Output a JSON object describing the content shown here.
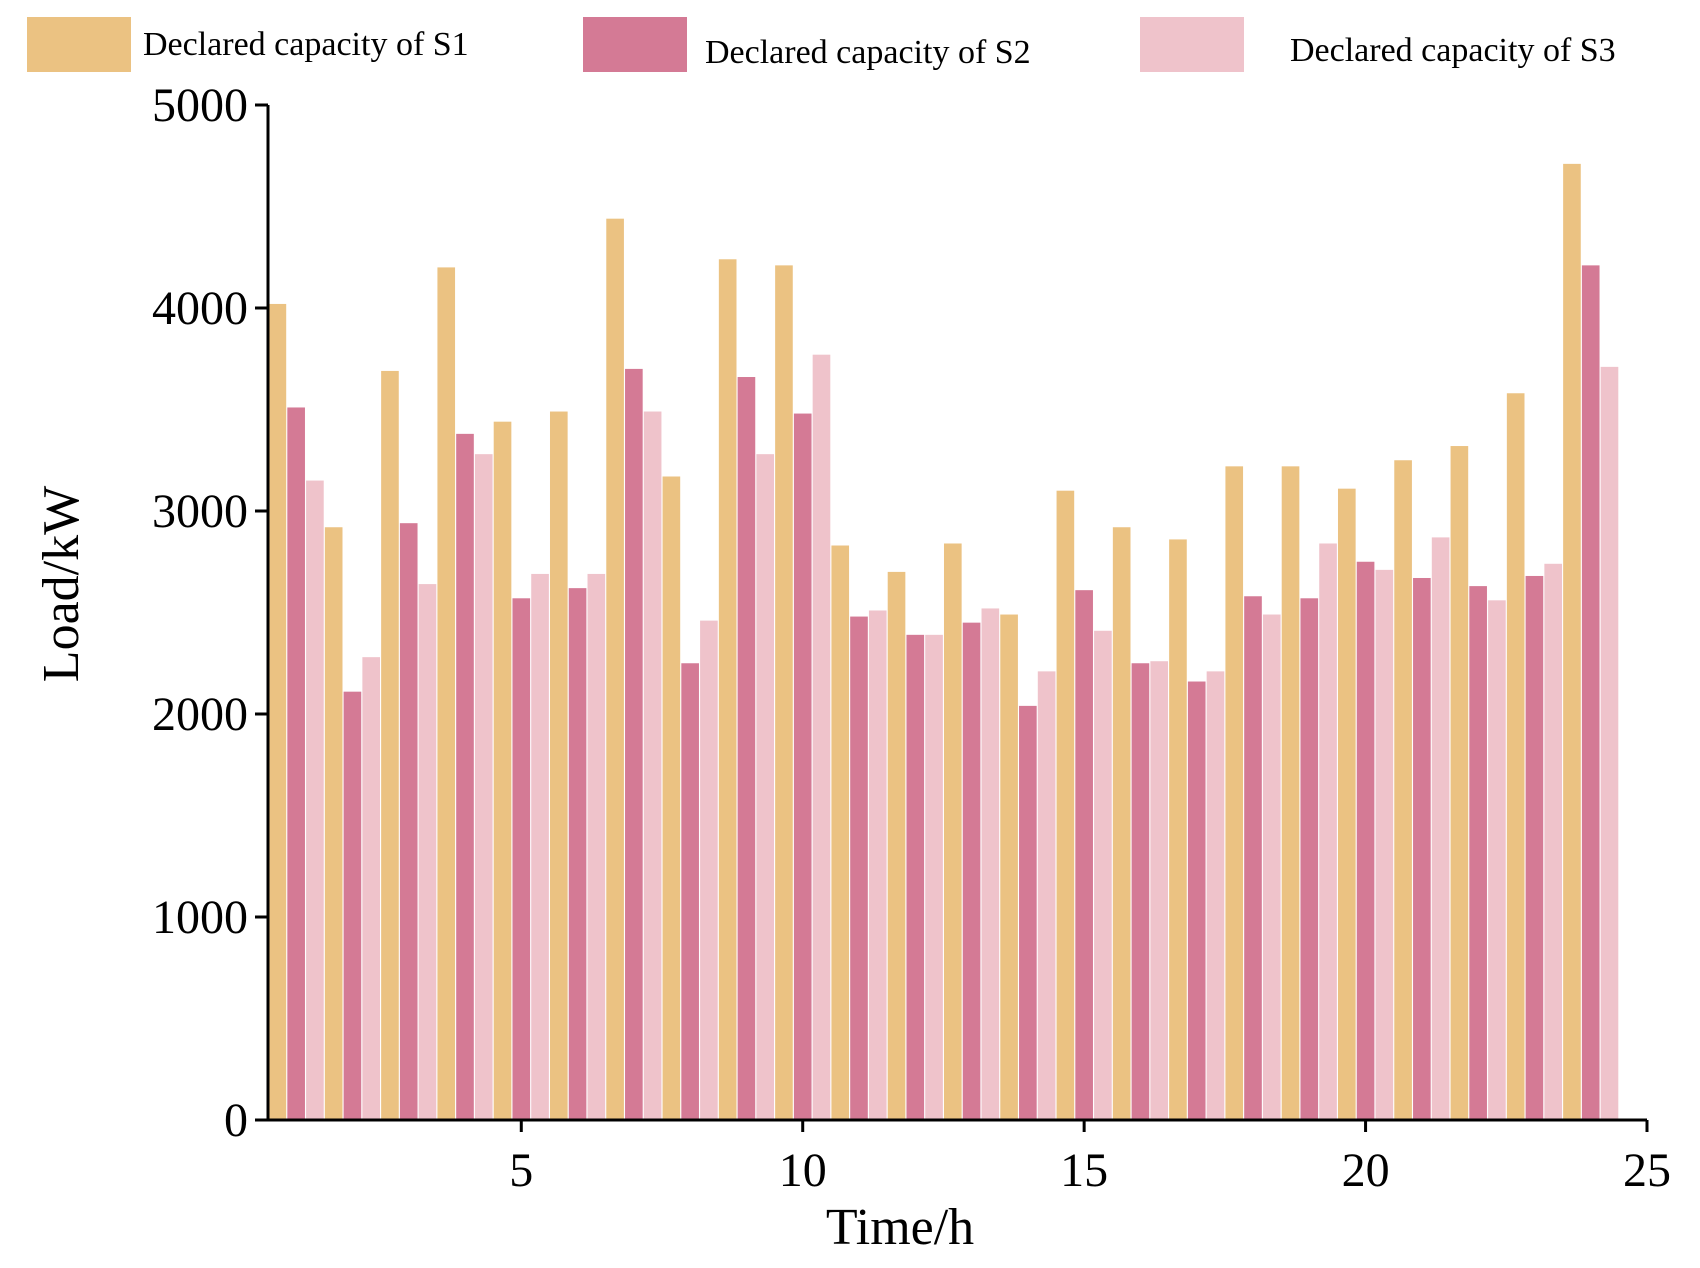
{
  "chart_data": {
    "type": "bar",
    "title": "",
    "xlabel": "Time/h",
    "ylabel": "Load/kW",
    "xlim": [
      0.5,
      25
    ],
    "ylim": [
      0,
      5000
    ],
    "x_ticks": [
      5,
      10,
      15,
      20,
      25
    ],
    "y_ticks": [
      0,
      1000,
      2000,
      3000,
      4000,
      5000
    ],
    "grid": false,
    "legend_position": "top",
    "categories": [
      1,
      2,
      3,
      4,
      5,
      6,
      7,
      8,
      9,
      10,
      11,
      12,
      13,
      14,
      15,
      16,
      17,
      18,
      19,
      20,
      21,
      22,
      23,
      24
    ],
    "series": [
      {
        "name": "Declared capacity of S1",
        "color": "#EBC282",
        "values": [
          4020,
          2920,
          3690,
          4200,
          3440,
          3490,
          4440,
          3170,
          4240,
          4210,
          2830,
          2700,
          2840,
          2490,
          3100,
          2920,
          2860,
          3220,
          3220,
          3110,
          3250,
          3320,
          3580,
          4710
        ]
      },
      {
        "name": "Declared capacity of S2",
        "color": "#D47A95",
        "values": [
          3510,
          2110,
          2940,
          3380,
          2570,
          2620,
          3700,
          2250,
          3660,
          3480,
          2480,
          2390,
          2450,
          2040,
          2610,
          2250,
          2160,
          2580,
          2570,
          2750,
          2670,
          2630,
          2680,
          4210
        ]
      },
      {
        "name": "Declared capacity of S3",
        "color": "#EFC3CB",
        "values": [
          3150,
          2280,
          2640,
          3280,
          2690,
          2690,
          3490,
          2460,
          3280,
          3770,
          2510,
          2390,
          2520,
          2210,
          2410,
          2260,
          2210,
          2490,
          2840,
          2710,
          2870,
          2560,
          2740,
          3710
        ]
      }
    ]
  }
}
